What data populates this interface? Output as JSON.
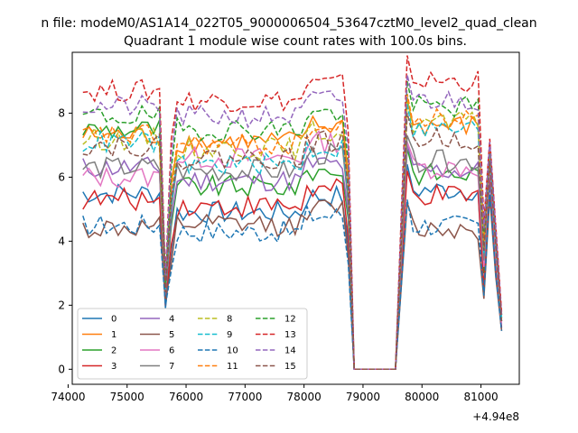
{
  "figure": {
    "suptitle": "n file: modeM0/AS1A14_022T05_9000006504_53647cztM0_level2_quad_clean",
    "title": "Quadrant 1 module wise count rates with 100.0s bins.",
    "x_offset_label": "+4.94e8"
  },
  "chart_data": {
    "type": "line",
    "title": "Quadrant 1 module wise count rates with 100.0s bins.",
    "xlabel": "",
    "ylabel": "",
    "xlim": [
      74070,
      81650
    ],
    "ylim": [
      -0.47,
      9.9
    ],
    "x_offset": 494000000,
    "xticks": [
      74000,
      75000,
      76000,
      77000,
      78000,
      79000,
      80000,
      81000
    ],
    "xtick_labels": [
      "74000",
      "75000",
      "76000",
      "77000",
      "78000",
      "79000",
      "80000",
      "81000"
    ],
    "yticks": [
      0,
      2,
      4,
      6,
      8
    ],
    "ytick_labels": [
      "0",
      "2",
      "4",
      "6",
      "8"
    ],
    "grid": false,
    "legend": {
      "placement": "lower-left",
      "columns": 4
    },
    "segments": {
      "seg1_x": [
        74250,
        75550
      ],
      "dip_x": [
        75650,
        75750
      ],
      "seg2_x": [
        75750,
        78650
      ],
      "gap_x": [
        78850,
        79550
      ],
      "seg3_x": [
        79750,
        80950
      ],
      "tail_x": [
        81050,
        81150,
        81250,
        81350
      ]
    },
    "series": [
      {
        "name": "0",
        "color": "#1f77b4",
        "dash": "solid",
        "base1": 5.5,
        "base2": 4.9,
        "base3": 5.6,
        "dip": 1.9,
        "tail": [
          2.4,
          6.0,
          3.2,
          1.2
        ]
      },
      {
        "name": "1",
        "color": "#ff7f0e",
        "dash": "solid",
        "base1": 7.3,
        "base2": 7.1,
        "base3": 7.6,
        "dip": 2.6,
        "tail": [
          4.2,
          6.6,
          4.0,
          1.6
        ]
      },
      {
        "name": "2",
        "color": "#2ca02c",
        "dash": "solid",
        "base1": 7.5,
        "base2": 5.7,
        "base3": 6.1,
        "dip": 2.3,
        "tail": [
          3.0,
          6.4,
          3.6,
          1.5
        ]
      },
      {
        "name": "3",
        "color": "#d62728",
        "dash": "solid",
        "base1": 5.3,
        "base2": 5.1,
        "base3": 5.4,
        "dip": 2.0,
        "tail": [
          2.5,
          6.2,
          3.3,
          1.3
        ]
      },
      {
        "name": "4",
        "color": "#9467bd",
        "dash": "solid",
        "base1": 6.3,
        "base2": 5.9,
        "base3": 6.2,
        "dip": 2.3,
        "tail": [
          3.3,
          6.3,
          3.7,
          1.5
        ]
      },
      {
        "name": "5",
        "color": "#8c564b",
        "dash": "solid",
        "base1": 4.4,
        "base2": 4.5,
        "base3": 4.4,
        "dip": 2.1,
        "tail": [
          2.2,
          5.4,
          2.9,
          1.2
        ]
      },
      {
        "name": "6",
        "color": "#e377c2",
        "dash": "solid",
        "base1": 6.0,
        "base2": 6.6,
        "base3": 6.3,
        "dip": 2.4,
        "tail": [
          3.2,
          6.5,
          3.6,
          1.4
        ]
      },
      {
        "name": "7",
        "color": "#7f7f7f",
        "dash": "solid",
        "base1": 6.3,
        "base2": 6.2,
        "base3": 6.5,
        "dip": 2.4,
        "tail": [
          3.4,
          6.6,
          3.8,
          1.5
        ]
      },
      {
        "name": "8",
        "color": "#bcbd22",
        "dash": "dashed",
        "base1": 7.2,
        "base2": 6.9,
        "base3": 7.7,
        "dip": 2.6,
        "tail": [
          3.8,
          6.8,
          4.1,
          1.6
        ]
      },
      {
        "name": "9",
        "color": "#17becf",
        "dash": "dashed",
        "base1": 7.1,
        "base2": 6.4,
        "base3": 7.5,
        "dip": 2.5,
        "tail": [
          3.6,
          6.7,
          4.0,
          1.6
        ]
      },
      {
        "name": "10",
        "color": "#1f77b4",
        "dash": "dashed",
        "base1": 4.5,
        "base2": 4.3,
        "base3": 4.5,
        "dip": 2.0,
        "tail": [
          2.3,
          5.6,
          3.0,
          1.2
        ]
      },
      {
        "name": "11",
        "color": "#ff7f0e",
        "dash": "dashed",
        "base1": 7.3,
        "base2": 7.0,
        "base3": 7.8,
        "dip": 2.6,
        "tail": [
          4.0,
          6.9,
          4.2,
          1.7
        ]
      },
      {
        "name": "12",
        "color": "#2ca02c",
        "dash": "dashed",
        "base1": 7.9,
        "base2": 7.5,
        "base3": 8.2,
        "dip": 2.7,
        "tail": [
          4.3,
          7.0,
          4.3,
          1.7
        ]
      },
      {
        "name": "13",
        "color": "#d62728",
        "dash": "dashed",
        "base1": 8.7,
        "base2": 8.4,
        "base3": 9.0,
        "dip": 2.9,
        "tail": [
          4.6,
          7.2,
          4.5,
          1.8
        ]
      },
      {
        "name": "14",
        "color": "#9467bd",
        "dash": "dashed",
        "base1": 8.2,
        "base2": 7.9,
        "base3": 8.4,
        "dip": 2.8,
        "tail": [
          4.4,
          7.1,
          4.4,
          1.7
        ]
      },
      {
        "name": "15",
        "color": "#8c564b",
        "dash": "dashed",
        "base1": 7.0,
        "base2": 6.6,
        "base3": 7.2,
        "dip": 2.4,
        "tail": [
          3.7,
          6.5,
          3.9,
          1.5
        ]
      }
    ]
  }
}
